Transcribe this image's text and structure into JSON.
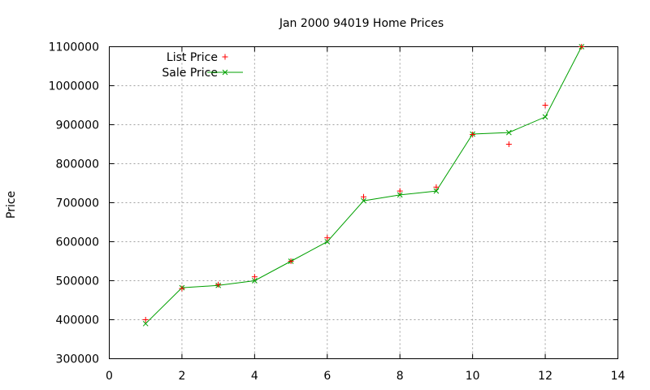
{
  "chart_data": {
    "type": "scatter",
    "title": "Jan 2000 94019 Home Prices",
    "xlabel": "",
    "ylabel": "Price",
    "xlim": [
      0,
      14
    ],
    "ylim": [
      300000,
      1100000
    ],
    "x_ticks": [
      0,
      2,
      4,
      6,
      8,
      10,
      12,
      14
    ],
    "y_ticks": [
      300000,
      400000,
      500000,
      600000,
      700000,
      800000,
      900000,
      1000000,
      1100000
    ],
    "x_tick_labels": [
      "0",
      "2",
      "4",
      "6",
      "8",
      "10",
      "12",
      "14"
    ],
    "y_tick_labels": [
      "300000",
      "400000",
      "500000",
      "600000",
      "700000",
      "800000",
      "900000",
      "1000000",
      "1100000"
    ],
    "grid": true,
    "legend_position": "top-left",
    "series": [
      {
        "name": "List Price",
        "style": "points",
        "marker": "plus",
        "color": "#ff0000",
        "x": [
          1,
          2,
          3,
          4,
          5,
          6,
          7,
          8,
          9,
          10,
          11,
          12,
          13
        ],
        "y": [
          400000,
          480000,
          490000,
          510000,
          550000,
          610000,
          715000,
          730000,
          740000,
          875000,
          850000,
          950000,
          1100000
        ]
      },
      {
        "name": "Sale Price",
        "style": "linespoints",
        "marker": "cross",
        "color": "#00a000",
        "x": [
          1,
          2,
          3,
          4,
          5,
          6,
          7,
          8,
          9,
          10,
          11,
          12,
          13
        ],
        "y": [
          390000,
          482000,
          488000,
          500000,
          550000,
          600000,
          705000,
          720000,
          730000,
          876000,
          880000,
          920000,
          1100000
        ]
      }
    ]
  }
}
